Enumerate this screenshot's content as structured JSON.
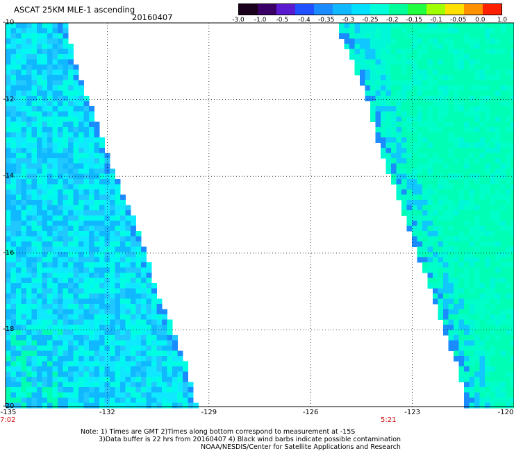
{
  "header": {
    "title": "ASCAT 25KM MLE-1 ascending",
    "date": "20160407"
  },
  "colorbar": {
    "tick_labels": [
      "-3.0",
      "-1.0",
      "-0.5",
      "-0.4",
      "-0.35",
      "-0.3",
      "-0.25",
      "-0.2",
      "-0.15",
      "-0.1",
      "-0.05",
      "0.0",
      "1.0"
    ],
    "colors": [
      "#1a001a",
      "#3a0066",
      "#5a1ad0",
      "#2050ff",
      "#1a8cff",
      "#10b8ff",
      "#00e0ff",
      "#00ffd8",
      "#00ff9a",
      "#20ff40",
      "#a0ff00",
      "#ffe000",
      "#ff9000",
      "#ff2000"
    ]
  },
  "axes": {
    "lat_labels": [
      "-10",
      "-12",
      "-14",
      "-16",
      "-18",
      "-20"
    ],
    "lon_labels": [
      "-135",
      "-132",
      "-129",
      "-126",
      "-123",
      "-120"
    ],
    "lat_range": [
      -20,
      -10
    ],
    "lon_range": [
      -135,
      -120
    ]
  },
  "times": {
    "left": "7:02",
    "right": "5:21"
  },
  "notes": {
    "line1": "Note: 1) Times are GMT 2)Times along bottom correspond to measurement at -15S",
    "line2": "3)Data buffer is 22 hrs from 20160407 4) Black wind barbs indicate possible contamination",
    "line3": "NOAA/NESDIS/Center for Satellite Applications and Research"
  },
  "swaths": {
    "west": {
      "lon_left": -135,
      "lat_edge": [
        [
          -10,
          -133.3
        ],
        [
          -11,
          -133.0
        ],
        [
          -12,
          -132.6
        ],
        [
          -13,
          -132.2
        ],
        [
          -14,
          -131.8
        ],
        [
          -15,
          -131.3
        ],
        [
          -16,
          -130.9
        ],
        [
          -17,
          -130.6
        ],
        [
          -18,
          -130.1
        ],
        [
          -19,
          -129.7
        ],
        [
          -20,
          -129.4
        ]
      ]
    },
    "east": {
      "lon_right": -120,
      "lat_edge": [
        [
          -10,
          -125.3
        ],
        [
          -11,
          -124.8
        ],
        [
          -12,
          -124.4
        ],
        [
          -13,
          -124.1
        ],
        [
          -14,
          -123.7
        ],
        [
          -15,
          -123.3
        ],
        [
          -16,
          -122.9
        ],
        [
          -17,
          -122.5
        ],
        [
          -18,
          -122.1
        ],
        [
          -19,
          -121.7
        ],
        [
          -20,
          -121.5
        ]
      ]
    }
  }
}
